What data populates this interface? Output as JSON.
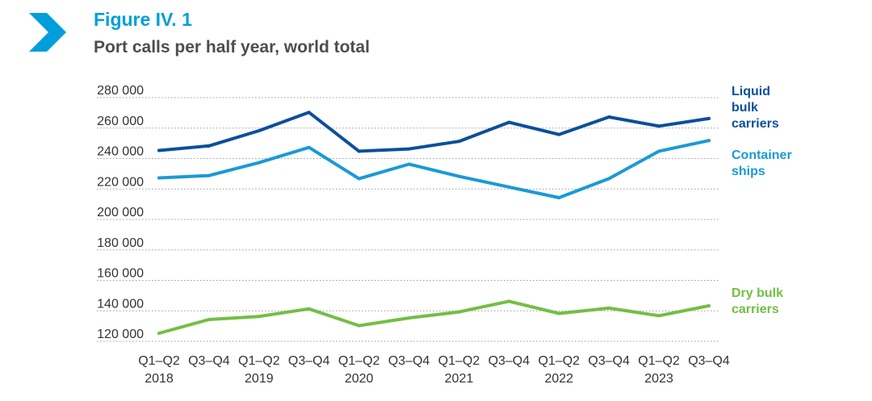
{
  "header": {
    "figure_number": "Figure IV. 1",
    "title": "Port calls per half year, world total",
    "accent_color": "#009edb"
  },
  "chart_data": {
    "type": "line",
    "title": "Port calls per half year, world total",
    "xlabel": "",
    "ylabel": "",
    "categories": [
      "Q1–Q2 2018",
      "Q3–Q4 2018",
      "Q1–Q2 2019",
      "Q3–Q4 2019",
      "Q1–Q2 2020",
      "Q3–Q4 2020",
      "Q1–Q2 2021",
      "Q3–Q4 2021",
      "Q1–Q2 2022",
      "Q3–Q4 2022",
      "Q1–Q2 2023",
      "Q3–Q4 2023"
    ],
    "x_tick_top": [
      "Q1–Q2",
      "Q3–Q4",
      "Q1–Q2",
      "Q3–Q4",
      "Q1–Q2",
      "Q3–Q4",
      "Q1–Q2",
      "Q3–Q4",
      "Q1–Q2",
      "Q3–Q4",
      "Q1–Q2",
      "Q3–Q4"
    ],
    "x_tick_bottom": [
      "2018",
      "",
      "2019",
      "",
      "2020",
      "",
      "2021",
      "",
      "2022",
      "",
      "2023",
      ""
    ],
    "y_ticks": [
      "120 000",
      "140 000",
      "160 000",
      "180 000",
      "200 000",
      "220 000",
      "240 000",
      "260 000",
      "280 000"
    ],
    "ylim": [
      115000,
      282000
    ],
    "grid": "horizontal dotted",
    "legend": "labels at right end of lines",
    "series": [
      {
        "name": "Liquid bulk carriers",
        "label_lines": [
          "Liquid",
          "bulk",
          "carriers"
        ],
        "color": "#0b4f9c",
        "values": [
          240000,
          243000,
          253000,
          265000,
          239500,
          241000,
          246000,
          258500,
          250500,
          262000,
          256000,
          261000
        ]
      },
      {
        "name": "Container ships",
        "label_lines": [
          "Container",
          "ships"
        ],
        "color": "#1a9ad6",
        "values": [
          222000,
          223500,
          232000,
          242000,
          221500,
          231000,
          223000,
          216000,
          209000,
          221500,
          239500,
          246500
        ]
      },
      {
        "name": "Dry bulk carriers",
        "label_lines": [
          "Dry bulk",
          "carriers"
        ],
        "color": "#72bf44",
        "values": [
          120000,
          129000,
          131000,
          136000,
          125000,
          130000,
          134000,
          141000,
          133000,
          136500,
          131500,
          138000
        ]
      }
    ]
  }
}
